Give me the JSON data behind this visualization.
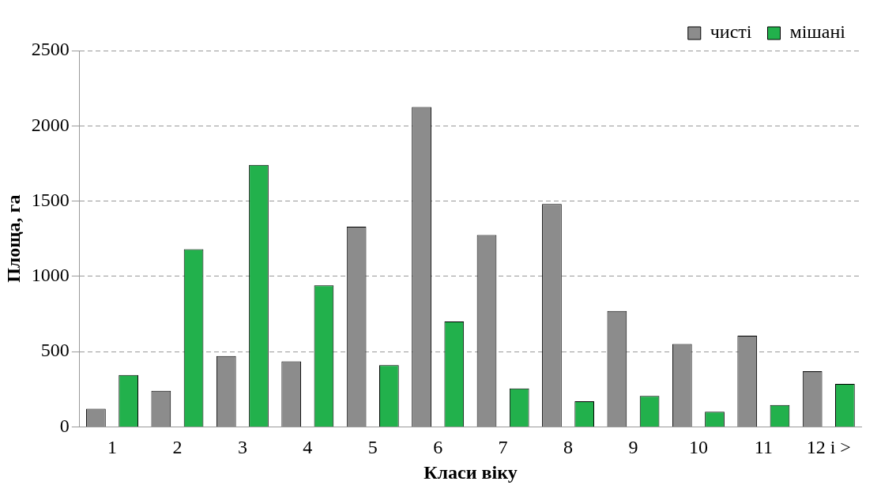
{
  "chart_data": {
    "type": "bar",
    "xlabel": "Класи віку",
    "ylabel": "Площа, га",
    "categories": [
      "1",
      "2",
      "3",
      "4",
      "5",
      "6",
      "7",
      "8",
      "9",
      "10",
      "11",
      "12 і >"
    ],
    "series": [
      {
        "name": "чисті",
        "color": "#8c8c8c",
        "values": [
          120,
          240,
          470,
          435,
          1330,
          2125,
          1275,
          1480,
          770,
          550,
          605,
          370
        ]
      },
      {
        "name": "мішані",
        "color": "#22b14c",
        "values": [
          345,
          1180,
          1740,
          940,
          410,
          700,
          255,
          170,
          205,
          100,
          145,
          285
        ]
      }
    ],
    "ylim": [
      0,
      2500
    ],
    "yticks": [
      0,
      500,
      1000,
      1500,
      2000,
      2500
    ],
    "grid": "y",
    "legend": "top right"
  }
}
